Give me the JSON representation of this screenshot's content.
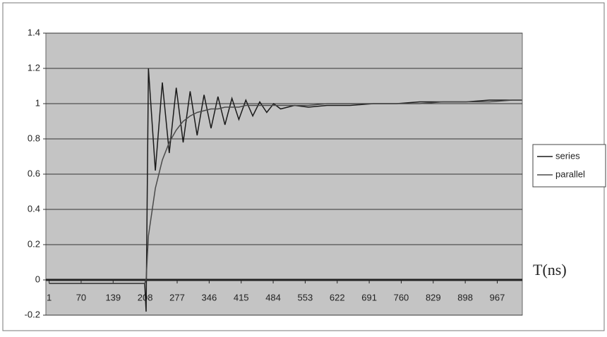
{
  "chart_data": {
    "type": "line",
    "x_label": "T(ns)",
    "x": [
      1,
      50,
      100,
      150,
      200,
      207,
      210,
      215,
      230,
      245,
      260,
      275,
      290,
      305,
      320,
      335,
      350,
      365,
      380,
      395,
      410,
      425,
      440,
      455,
      470,
      485,
      500,
      530,
      560,
      600,
      650,
      700,
      750,
      800,
      850,
      900,
      950,
      1000,
      1020
    ],
    "series": [
      {
        "name": "series",
        "color": "#1a1a1a",
        "values": [
          -0.02,
          -0.02,
          -0.02,
          -0.02,
          -0.02,
          -0.02,
          -0.18,
          1.2,
          0.62,
          1.12,
          0.72,
          1.09,
          0.78,
          1.07,
          0.82,
          1.05,
          0.86,
          1.04,
          0.88,
          1.03,
          0.91,
          1.02,
          0.93,
          1.01,
          0.95,
          1.0,
          0.97,
          0.99,
          0.98,
          0.99,
          0.99,
          1.0,
          1.0,
          1.01,
          1.01,
          1.01,
          1.02,
          1.02,
          1.02
        ]
      },
      {
        "name": "parallel",
        "color": "#4a4a4a",
        "values": [
          -0.02,
          -0.02,
          -0.02,
          -0.02,
          -0.02,
          -0.02,
          0.0,
          0.25,
          0.52,
          0.68,
          0.78,
          0.85,
          0.9,
          0.93,
          0.95,
          0.96,
          0.97,
          0.97,
          0.98,
          0.98,
          0.98,
          0.99,
          0.99,
          0.99,
          0.99,
          0.99,
          0.99,
          0.99,
          0.99,
          1.0,
          1.0,
          1.0,
          1.0,
          1.0,
          1.01,
          1.01,
          1.01,
          1.02,
          1.02
        ]
      }
    ],
    "xlim": [
      -6,
      1021
    ],
    "xticks": [
      1,
      70,
      139,
      208,
      277,
      346,
      415,
      484,
      553,
      622,
      691,
      760,
      829,
      898,
      967
    ],
    "ylim": [
      -0.2,
      1.4
    ],
    "yticks": [
      -0.2,
      0,
      0.2,
      0.4,
      0.6,
      0.8,
      1,
      1.2,
      1.4
    ],
    "grid": true,
    "legend": "right"
  }
}
